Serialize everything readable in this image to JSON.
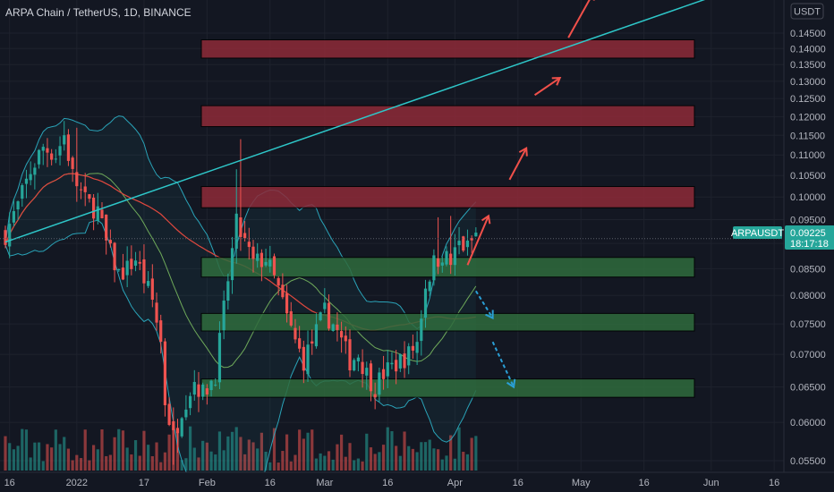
{
  "header": {
    "title": "ARPA Chain / TetherUS, 1D, BINANCE"
  },
  "price_axis": {
    "currency": "USDT",
    "ticks": [
      "0.14500",
      "0.14000",
      "0.13500",
      "0.13000",
      "0.12500",
      "0.12000",
      "0.11500",
      "0.11000",
      "0.10500",
      "0.10000",
      "0.09500",
      "0.09000",
      "0.08500",
      "0.08000",
      "0.07500",
      "0.07000",
      "0.06500",
      "0.06000",
      "0.05500"
    ]
  },
  "time_axis": {
    "ticks": [
      "16",
      "2022",
      "17",
      "Feb",
      "16",
      "Mar",
      "16",
      "Apr",
      "16",
      "May",
      "16",
      "Jun",
      "16"
    ]
  },
  "price_tag": {
    "symbol": "ARPAUSDT",
    "price": "0.09225",
    "countdown": "18:17:18"
  },
  "colors": {
    "background": "#131722",
    "up": "#26a69a",
    "down": "#ef5350",
    "resistance_zone": "#8e2a38",
    "support_zone": "#2f6b3d",
    "trendline": "#2ec7c9",
    "ma_red": "#e0483e",
    "bollinger": "#2aa3b8",
    "ma_green": "#6ea95a",
    "arrow_up": "#f0504a",
    "arrow_down": "#2a9fd6"
  },
  "chart_data": {
    "type": "candlestick",
    "symbol": "ARPAUSDT",
    "interval": "1D",
    "exchange": "BINANCE",
    "y_scale": "log",
    "ylim": [
      0.0535,
      0.156
    ],
    "xlim": [
      "2021-12-15",
      "2022-06-23"
    ],
    "last_price": 0.09225,
    "anchors": [
      [
        "2021-12-15",
        0.092
      ],
      [
        "2021-12-18",
        0.098
      ],
      [
        "2021-12-21",
        0.106
      ],
      [
        "2021-12-24",
        0.112
      ],
      [
        "2021-12-27",
        0.11
      ],
      [
        "2021-12-29",
        0.115
      ],
      [
        "2021-12-31",
        0.105
      ],
      [
        "2022-01-03",
        0.099
      ],
      [
        "2022-01-06",
        0.097
      ],
      [
        "2022-01-08",
        0.09
      ],
      [
        "2022-01-11",
        0.084
      ],
      [
        "2022-01-13",
        0.085
      ],
      [
        "2022-01-15",
        0.087
      ],
      [
        "2022-01-17",
        0.083
      ],
      [
        "2022-01-19",
        0.079
      ],
      [
        "2022-01-21",
        0.072
      ],
      [
        "2022-01-22",
        0.063
      ],
      [
        "2022-01-24",
        0.058
      ],
      [
        "2022-01-26",
        0.062
      ],
      [
        "2022-01-29",
        0.066
      ],
      [
        "2022-01-31",
        0.064
      ],
      [
        "2022-02-03",
        0.067
      ],
      [
        "2022-02-06",
        0.083
      ],
      [
        "2022-02-08",
        0.094
      ],
      [
        "2022-02-10",
        0.09
      ],
      [
        "2022-02-12",
        0.086
      ],
      [
        "2022-02-15",
        0.087
      ],
      [
        "2022-02-18",
        0.081
      ],
      [
        "2022-02-20",
        0.076
      ],
      [
        "2022-02-22",
        0.072
      ],
      [
        "2022-02-24",
        0.069
      ],
      [
        "2022-02-26",
        0.072
      ],
      [
        "2022-03-01",
        0.077
      ],
      [
        "2022-03-03",
        0.075
      ],
      [
        "2022-03-05",
        0.072
      ],
      [
        "2022-03-07",
        0.069
      ],
      [
        "2022-03-09",
        0.07
      ],
      [
        "2022-03-11",
        0.067
      ],
      [
        "2022-03-13",
        0.065
      ],
      [
        "2022-03-15",
        0.067
      ],
      [
        "2022-03-17",
        0.068
      ],
      [
        "2022-03-19",
        0.069
      ],
      [
        "2022-03-21",
        0.07
      ],
      [
        "2022-03-23",
        0.072
      ],
      [
        "2022-03-25",
        0.082
      ],
      [
        "2022-03-27",
        0.086
      ],
      [
        "2022-03-29",
        0.088
      ],
      [
        "2022-03-31",
        0.086
      ],
      [
        "2022-04-02",
        0.09
      ],
      [
        "2022-04-04",
        0.089
      ],
      [
        "2022-04-06",
        0.092
      ]
    ],
    "volume_max": 60,
    "zones": {
      "resistance": [
        {
          "low": 0.137,
          "high": 0.1428
        },
        {
          "low": 0.1173,
          "high": 0.123
        },
        {
          "low": 0.0976,
          "high": 0.1024
        }
      ],
      "support": [
        {
          "low": 0.0834,
          "high": 0.0872
        },
        {
          "low": 0.0738,
          "high": 0.0768
        },
        {
          "low": 0.0635,
          "high": 0.0662
        }
      ]
    },
    "trendline": [
      [
        "2021-12-15",
        0.0903
      ],
      [
        "2022-06-09",
        0.1615
      ]
    ],
    "horizontal_line": 0.091,
    "arrows_up": [
      [
        [
          "2022-04-04",
          0.0857
        ],
        [
          "2022-04-09",
          0.0958
        ]
      ],
      [
        [
          "2022-04-14",
          0.104
        ],
        [
          "2022-04-18",
          0.1117
        ]
      ],
      [
        [
          "2022-04-20",
          0.126
        ],
        [
          "2022-04-26",
          0.131
        ]
      ],
      [
        [
          "2022-04-28",
          0.1435
        ],
        [
          "2022-05-04",
          0.159
        ]
      ]
    ],
    "arrows_down": [
      [
        [
          "2022-04-06",
          0.0808
        ],
        [
          "2022-04-10",
          0.076
        ]
      ],
      [
        [
          "2022-04-10",
          0.072
        ],
        [
          "2022-04-15",
          0.065
        ]
      ]
    ]
  }
}
